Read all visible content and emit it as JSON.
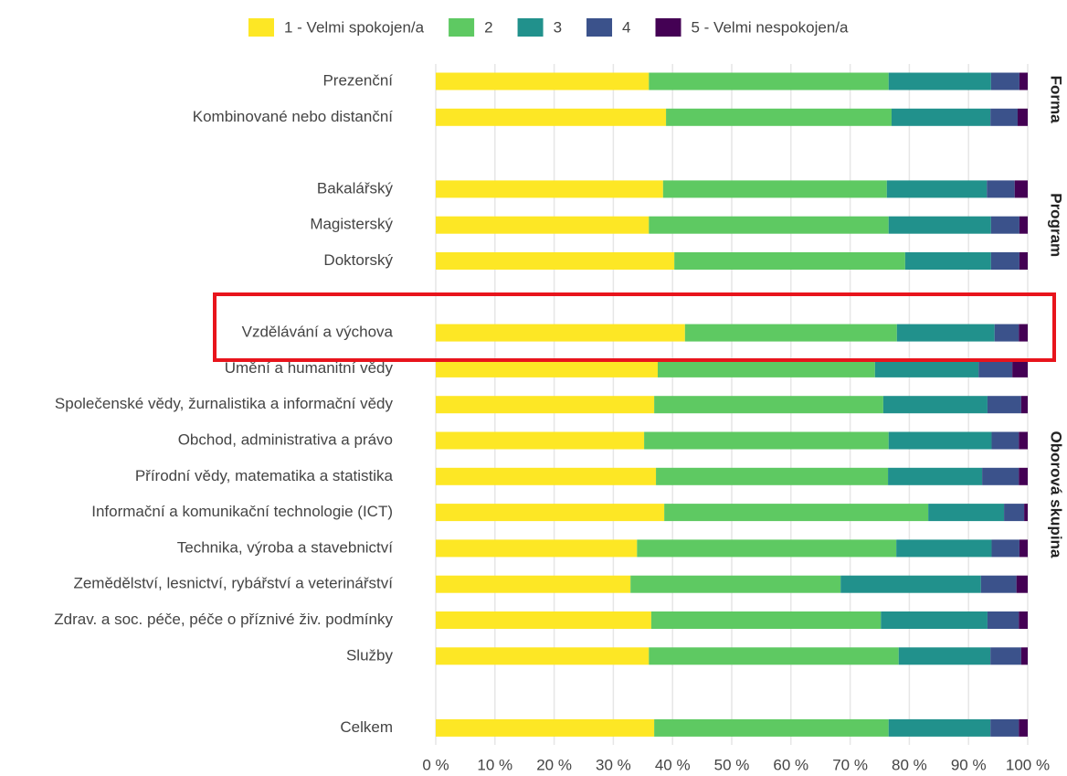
{
  "chart_data": {
    "type": "stacked-barh",
    "series": [
      {
        "name": "1 - Velmi spokojen/a",
        "color": "#fde725"
      },
      {
        "name": "2",
        "color": "#5ec962"
      },
      {
        "name": "3",
        "color": "#21918c"
      },
      {
        "name": "4",
        "color": "#3b528b"
      },
      {
        "name": "5 - Velmi nespokojen/a",
        "color": "#440154"
      }
    ],
    "panels": [
      {
        "label": "Forma",
        "categories": [
          "Prezenční",
          "Kombinované nebo distanční"
        ],
        "values": [
          [
            36.0,
            40.5,
            17.3,
            4.8,
            1.4
          ],
          [
            38.9,
            38.1,
            16.7,
            4.6,
            1.7
          ]
        ]
      },
      {
        "label": "Program",
        "categories": [
          "Bakalářský",
          "Magisterský",
          "Doktorský"
        ],
        "values": [
          [
            38.4,
            37.8,
            16.9,
            4.7,
            2.2
          ],
          [
            36.0,
            40.5,
            17.3,
            4.8,
            1.4
          ],
          [
            40.3,
            39.0,
            14.5,
            4.8,
            1.4
          ]
        ]
      },
      {
        "label": "Oborová skupina",
        "categories": [
          "Vzdělávání a výchova",
          "Umění a humanitní vědy",
          "Společenské vědy, žurnalistika a informační vědy",
          "Obchod, administrativa a právo",
          "Přírodní vědy, matematika a statistika",
          "Informační a komunikační technologie (ICT)",
          "Technika, výroba a stavebnictví",
          "Zemědělství, lesnictví, rybářství a veterinářství",
          "Zdrav. a soc. péče, péče o příznivé živ. podmínky",
          "Služby"
        ],
        "values": [
          [
            42.1,
            35.8,
            16.5,
            4.1,
            1.5
          ],
          [
            37.5,
            36.7,
            17.5,
            5.7,
            2.6
          ],
          [
            36.9,
            38.7,
            17.6,
            5.7,
            1.1
          ],
          [
            35.2,
            41.3,
            17.4,
            4.6,
            1.5
          ],
          [
            37.2,
            39.2,
            15.9,
            6.2,
            1.5
          ],
          [
            38.6,
            44.6,
            12.8,
            3.4,
            0.6
          ],
          [
            34.0,
            43.8,
            16.1,
            4.7,
            1.4
          ],
          [
            32.9,
            35.5,
            23.7,
            6.0,
            1.9
          ],
          [
            36.4,
            38.8,
            18.0,
            5.3,
            1.5
          ],
          [
            36.0,
            42.2,
            15.5,
            5.2,
            1.1
          ]
        ]
      },
      {
        "categories": [
          "Celkem"
        ],
        "values": [
          [
            36.9,
            39.6,
            17.2,
            4.8,
            1.5
          ]
        ]
      }
    ],
    "xlim": [
      0,
      100
    ],
    "xticks": [
      {
        "value": 0,
        "label": "0 %"
      },
      {
        "value": 10,
        "label": "10 %"
      },
      {
        "value": 20,
        "label": "20 %"
      },
      {
        "value": 30,
        "label": "30 %"
      },
      {
        "value": 40,
        "label": "40 %"
      },
      {
        "value": 50,
        "label": "50 %"
      },
      {
        "value": 60,
        "label": "60 %"
      },
      {
        "value": 70,
        "label": "70 %"
      },
      {
        "value": 80,
        "label": "80 %"
      },
      {
        "value": 90,
        "label": "90 %"
      },
      {
        "value": 100,
        "label": "100 %"
      }
    ],
    "grid": true
  }
}
